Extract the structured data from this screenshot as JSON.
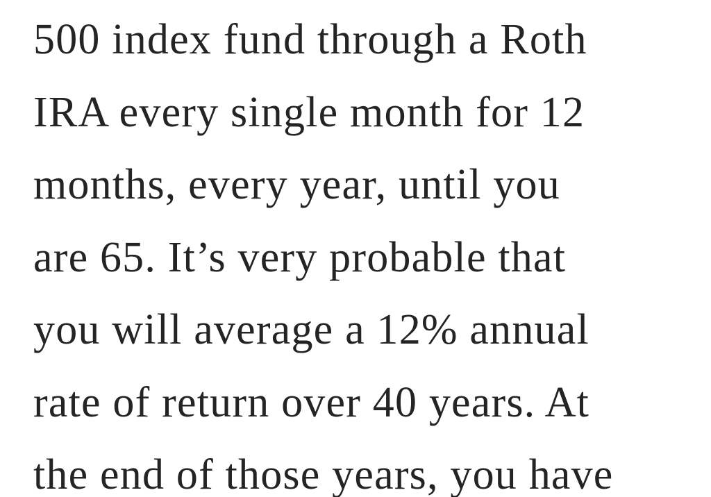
{
  "paragraph": {
    "lines": [
      "500 index fund through a Roth",
      "IRA every single month for 12",
      "months, every year, until you",
      "are 65. It’s very probable that",
      "you will average a 12% annual",
      "rate of return over 40 years. At",
      "the end of those years, you have"
    ]
  }
}
